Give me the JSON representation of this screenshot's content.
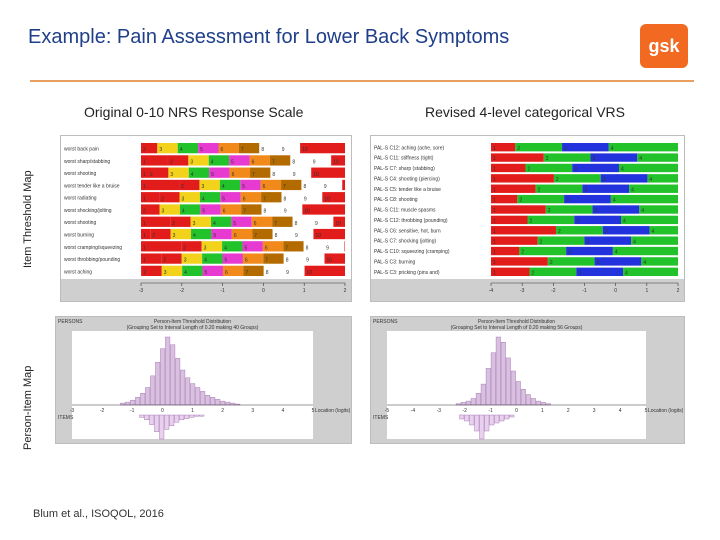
{
  "slide": {
    "title": "Example: Pain Assessment for Lower Back Symptoms",
    "logo_text": "gsk",
    "left_heading": "Original 0-10 NRS Response Scale",
    "right_heading": "Revised 4-level categorical VRS",
    "row_label_top": "Item Threshold Map",
    "row_label_bottom": "Person-Item Map",
    "citation": "Blum et al., ISOQOL, 2016"
  },
  "left_threshold_map": {
    "items": [
      "worst back pain",
      "worst sharp/stabbing",
      "worst shooting",
      "worst tender like a bruise",
      "worst radiating",
      "worst shocking/jolting",
      "worst shooting",
      "worst burning",
      "worst cramping/squeezing",
      "worst throbbing/pounding",
      "worst aching"
    ],
    "scale_labels": [
      "1",
      "2",
      "3",
      "4",
      "5",
      "6",
      "7",
      "8",
      "9",
      "10"
    ],
    "axis_ticks": [
      "-3",
      "-2",
      "-1",
      "0",
      "1",
      "2"
    ]
  },
  "right_threshold_map": {
    "items": [
      "PAL-S C12: aching (ache, sore)",
      "PAL-S C11: stiffness (tight)",
      "PAL-S C7: sharp (stabbing)",
      "PAL-S C4: shooting (piercing)",
      "PAL-S C5: tender like a bruise",
      "PAL-S C8: shooting",
      "PAL-S C11: muscle spasms",
      "PAL-S C12: throbbing (pounding)",
      "PAL-S C6: sensitive, hot, burn",
      "PAL-S C7: shocking (jolting)",
      "PAL-S C10: squeezing (cramping)",
      "PAL-S C3: burning",
      "PAL-S C3: pricking (pins and)"
    ],
    "scale_labels": [
      "1",
      "2",
      "3",
      "4"
    ],
    "axis_ticks": [
      "-4",
      "-3",
      "-2",
      "-1",
      "0",
      "1",
      "2"
    ]
  },
  "left_distribution": {
    "title": "Person-Item Threshold Distribution",
    "subtitle": "(Grouping Set to Interval Length of 0.20 making 40 Groups)",
    "top_label": "PERSONS",
    "bottom_label": "ITEMS",
    "x_axis_label": "Location (logits)",
    "x_ticks": [
      "-3",
      "-2",
      "-1",
      "0",
      "1",
      "2",
      "3",
      "4",
      "5"
    ],
    "person_bars": [
      2,
      3,
      5,
      8,
      12,
      18,
      30,
      44,
      58,
      70,
      62,
      48,
      36,
      28,
      22,
      18,
      14,
      10,
      8,
      6,
      4,
      3,
      2,
      1
    ],
    "item_bars": [
      2,
      4,
      8,
      14,
      20,
      12,
      9,
      6,
      4,
      3,
      2,
      1,
      1
    ]
  },
  "right_distribution": {
    "title": "Person-Item Threshold Distribution",
    "subtitle": "(Grouping Set to Interval Length of 0.20 making 56 Groups)",
    "top_label": "PERSONS",
    "bottom_label": "ITEMS",
    "x_axis_label": "Location (logits)",
    "x_ticks": [
      "-5",
      "-4",
      "-3",
      "-2",
      "-1",
      "0",
      "1",
      "2",
      "3",
      "4",
      "5"
    ],
    "person_bars": [
      1,
      2,
      3,
      5,
      9,
      16,
      28,
      40,
      52,
      48,
      36,
      26,
      18,
      12,
      8,
      5,
      3,
      2,
      1
    ],
    "item_bars": [
      2,
      3,
      5,
      8,
      12,
      8,
      5,
      4,
      3,
      2,
      1
    ]
  },
  "colors": {
    "title": "#1f3f8a",
    "rule": "#e8a060",
    "logo": "#f26a21",
    "panel": "#cfcfcf",
    "threshold_red": "#e21b1b",
    "threshold_green": "#22c22b",
    "threshold_blue": "#2233dd",
    "person_bar": "#d9bfe0"
  }
}
